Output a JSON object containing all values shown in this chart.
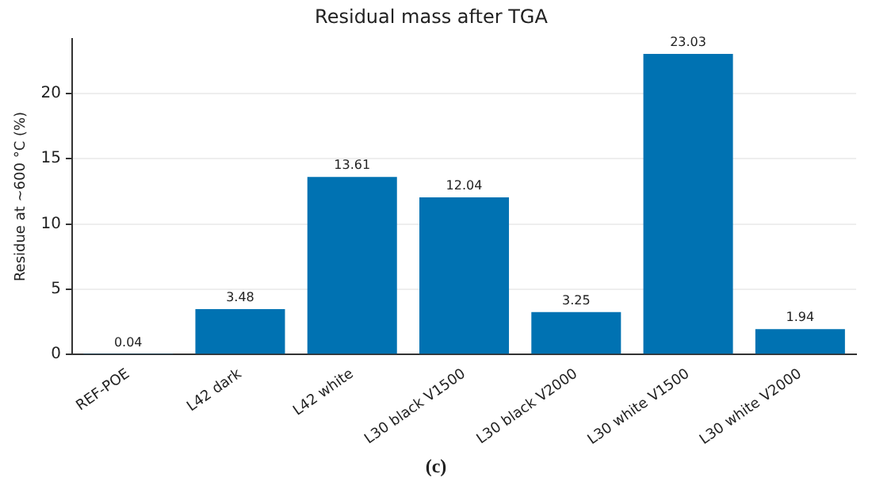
{
  "chart_data": {
    "type": "bar",
    "title": "Residual mass after TGA",
    "ylabel": "Residue at ~600 °C (%)",
    "categories": [
      "REF-POE",
      "L42 dark",
      "L42 white",
      "L30 black V1500",
      "L30 black V2000",
      "L30 white V1500",
      "L30 white V2000"
    ],
    "values": [
      0.04,
      3.48,
      13.61,
      12.04,
      3.25,
      23.03,
      1.94
    ],
    "color": "#0072b2",
    "ylim": [
      0,
      24.2
    ],
    "yticks": [
      0,
      5,
      10,
      15,
      20
    ],
    "grid": "y",
    "data_labels": true,
    "legend": false,
    "annotations": [
      "(c)"
    ]
  }
}
